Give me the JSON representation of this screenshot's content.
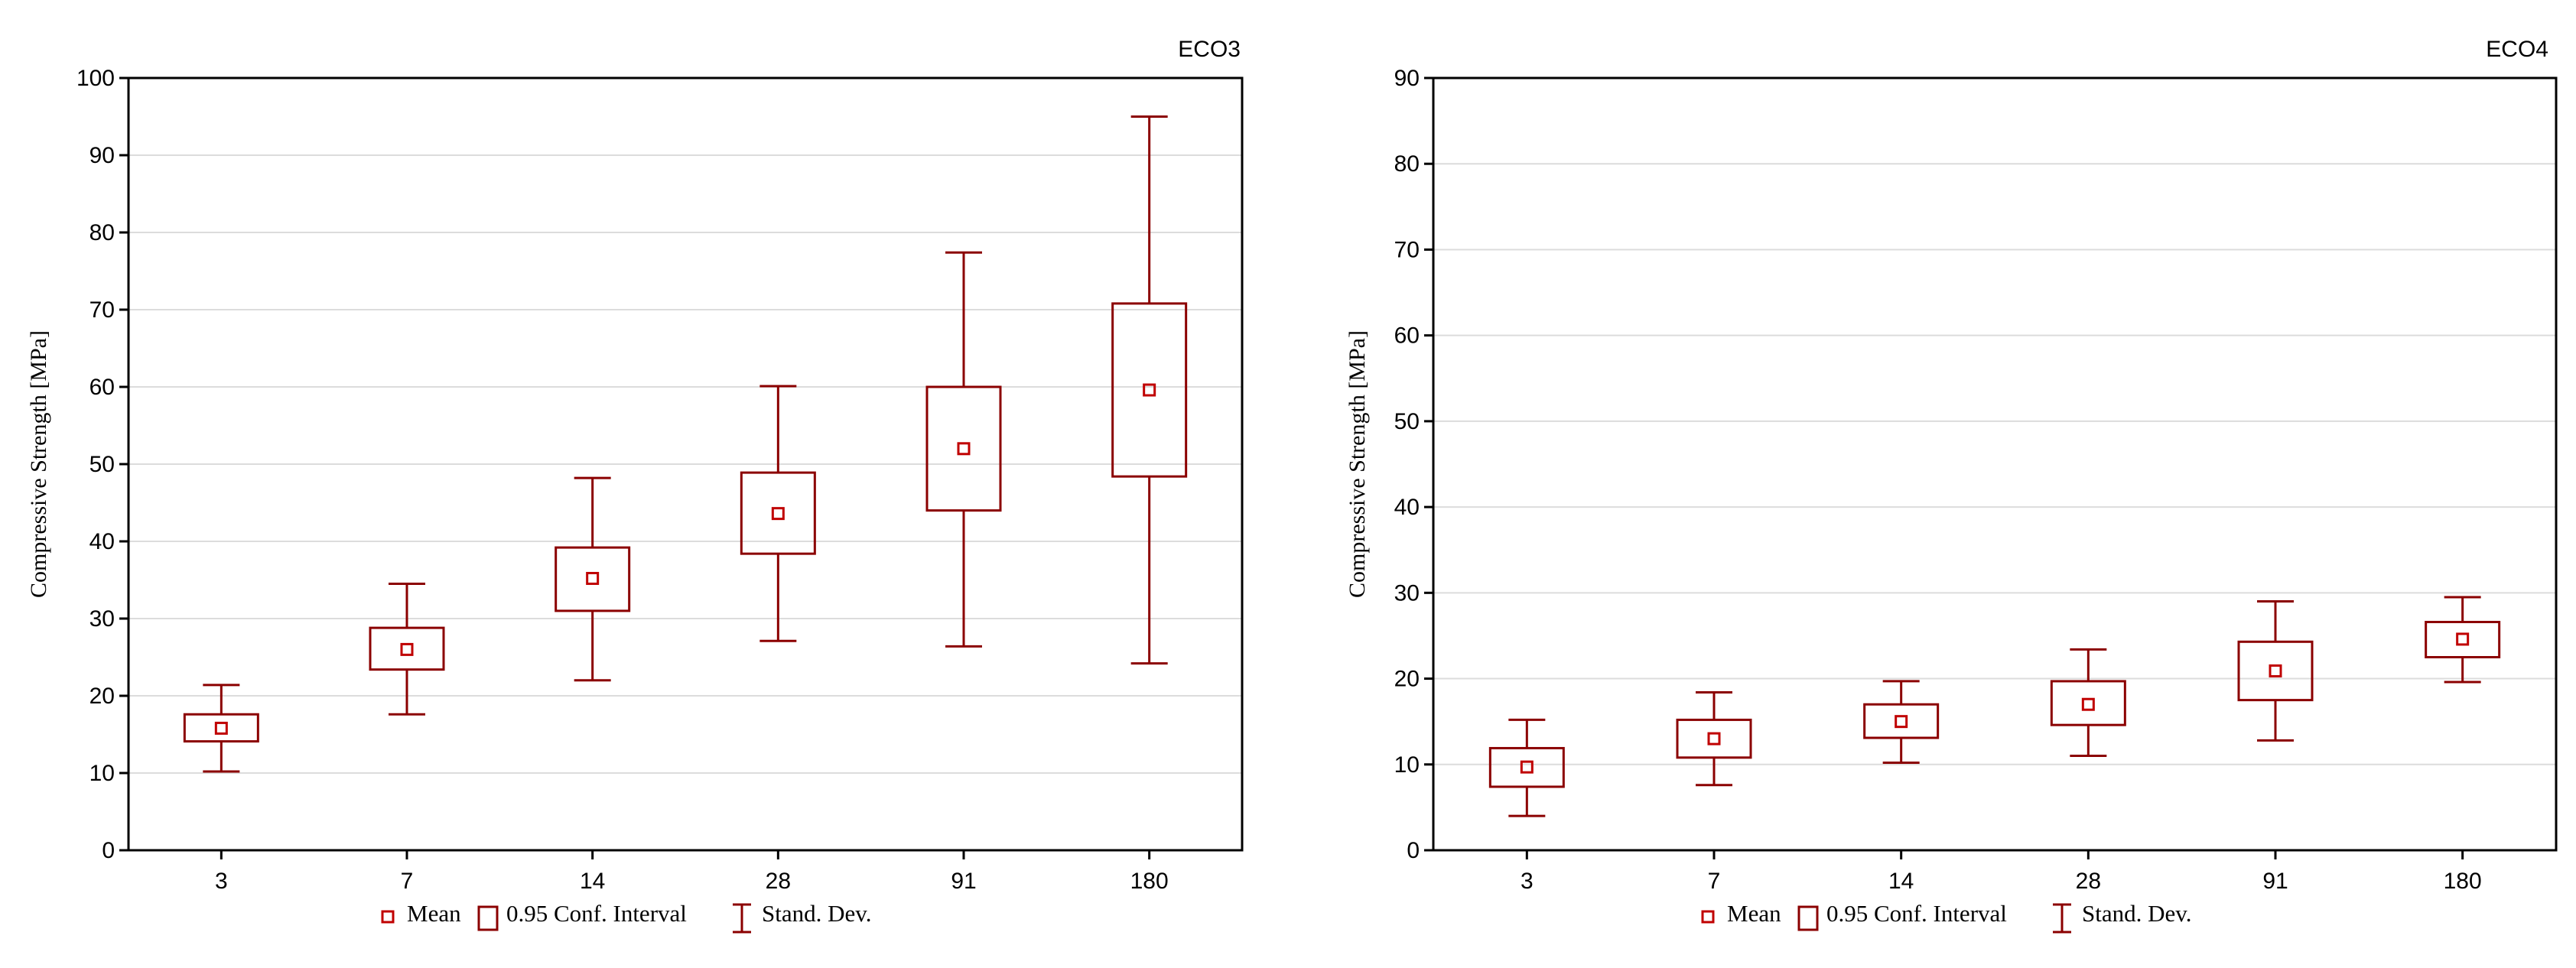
{
  "chart_data": [
    {
      "type": "box",
      "title": "ECO3",
      "xlabel": "",
      "ylabel": "Compressive Strength [MPa]",
      "ylim": [
        0,
        100
      ],
      "yticks": [
        0,
        10,
        20,
        30,
        40,
        50,
        60,
        70,
        80,
        90,
        100
      ],
      "categories": [
        "3",
        "7",
        "14",
        "28",
        "91",
        "180"
      ],
      "mean": [
        15.8,
        26,
        35.2,
        43.6,
        52,
        59.6
      ],
      "ci_low": [
        14.1,
        23.4,
        31,
        38.4,
        44,
        48.4
      ],
      "ci_high": [
        17.6,
        28.8,
        39.2,
        48.9,
        60,
        70.8
      ],
      "sd_low": [
        10.2,
        17.6,
        22,
        27.1,
        26.4,
        24.2
      ],
      "sd_high": [
        21.4,
        34.5,
        48.2,
        60.1,
        77.4,
        95
      ],
      "grid": true
    },
    {
      "type": "box",
      "title": "ECO4",
      "xlabel": "",
      "ylabel": "Compressive Strength [MPa]",
      "ylim": [
        0,
        90
      ],
      "yticks": [
        0,
        10,
        20,
        30,
        40,
        50,
        60,
        70,
        80,
        90
      ],
      "categories": [
        "3",
        "7",
        "14",
        "28",
        "91",
        "180"
      ],
      "mean": [
        9.7,
        13,
        15,
        17,
        20.9,
        24.6
      ],
      "ci_low": [
        7.4,
        10.8,
        13.1,
        14.6,
        17.5,
        22.5
      ],
      "ci_high": [
        11.9,
        15.2,
        17,
        19.7,
        24.3,
        26.6
      ],
      "sd_low": [
        4,
        7.6,
        10.2,
        11,
        12.8,
        19.6
      ],
      "sd_high": [
        15.2,
        18.4,
        19.7,
        23.4,
        29,
        29.5
      ],
      "grid": true
    }
  ],
  "legend": {
    "mean": "Mean",
    "ci": "0.95 Conf. Interval",
    "sd": "Stand. Dev."
  },
  "colors": {
    "series": "#8b0000",
    "mean_marker": "#c00000",
    "axis": "#000000",
    "grid": "#dcdcdc"
  }
}
